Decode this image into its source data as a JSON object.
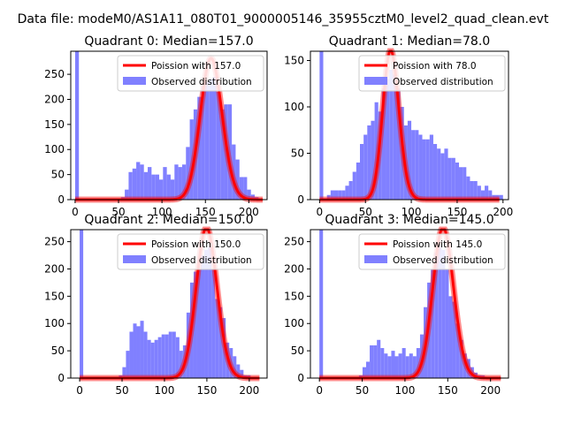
{
  "suptitle": "Data file: modeM0/AS1A11_080T01_9000005146_35955cztM0_level2_quad_clean.evt",
  "colors": {
    "bar": "#8080ff",
    "line": "#ff0000",
    "axis": "#000000"
  },
  "chart_data": [
    {
      "type": "bar",
      "title": "Quadrant 0: Median=157.0",
      "xlabel": "",
      "ylabel": "",
      "xlim": [
        -5,
        221
      ],
      "ylim": [
        0,
        296
      ],
      "xticks": [
        0,
        50,
        100,
        150,
        200
      ],
      "yticks": [
        0,
        50,
        100,
        150,
        200,
        250
      ],
      "bin_edges_start": 0,
      "bin_width": 4.4,
      "counts": [
        296,
        0,
        0,
        0,
        0,
        0,
        0,
        0,
        0,
        0,
        0,
        0,
        5,
        20,
        55,
        62,
        75,
        70,
        55,
        65,
        50,
        50,
        40,
        65,
        50,
        40,
        70,
        65,
        70,
        105,
        160,
        180,
        205,
        225,
        235,
        240,
        245,
        215,
        180,
        190,
        190,
        110,
        80,
        45,
        45,
        20,
        10,
        5,
        0
      ],
      "series": [
        {
          "name": "Poission with 157.0",
          "type": "poisson",
          "mu": 157.0,
          "x_max": 216
        },
        {
          "name": "Observed distribution",
          "type": "hist"
        }
      ],
      "legend": "upper-right"
    },
    {
      "type": "bar",
      "title": "Quadrant 1: Median=78.0",
      "xlabel": "",
      "ylabel": "",
      "xlim": [
        -10,
        206
      ],
      "ylim": [
        0,
        160
      ],
      "xticks": [
        0,
        50,
        100,
        150,
        200
      ],
      "yticks": [
        0,
        50,
        100,
        150
      ],
      "bin_edges_start": 0,
      "bin_width": 4.0,
      "counts": [
        160,
        0,
        5,
        10,
        10,
        10,
        10,
        15,
        20,
        30,
        40,
        60,
        70,
        80,
        85,
        105,
        95,
        120,
        130,
        140,
        135,
        120,
        100,
        80,
        85,
        75,
        75,
        70,
        65,
        65,
        70,
        60,
        55,
        50,
        55,
        45,
        45,
        40,
        35,
        35,
        25,
        20,
        20,
        15,
        10,
        15,
        10,
        5,
        5,
        5
      ],
      "series": [
        {
          "name": "Poission with 78.0",
          "type": "poisson",
          "mu": 78.0,
          "x_max": 196
        },
        {
          "name": "Observed distribution",
          "type": "hist"
        }
      ],
      "legend": "upper-right"
    },
    {
      "type": "bar",
      "title": "Quadrant 2: Median=150.0",
      "xlabel": "",
      "ylabel": "",
      "xlim": [
        -10.5,
        221
      ],
      "ylim": [
        0,
        272
      ],
      "xticks": [
        0,
        50,
        100,
        150,
        200
      ],
      "yticks": [
        0,
        50,
        100,
        150,
        200,
        250
      ],
      "bin_edges_start": 0,
      "bin_width": 4.2,
      "counts": [
        272,
        0,
        0,
        0,
        0,
        0,
        0,
        0,
        0,
        0,
        0,
        5,
        20,
        50,
        85,
        100,
        95,
        105,
        85,
        70,
        65,
        70,
        75,
        80,
        80,
        85,
        85,
        75,
        50,
        60,
        120,
        175,
        195,
        200,
        225,
        235,
        240,
        200,
        145,
        130,
        110,
        65,
        55,
        40,
        25,
        15,
        5,
        5,
        0
      ],
      "series": [
        {
          "name": "Poission with 150.0",
          "type": "poisson",
          "mu": 150.0,
          "x_max": 212
        },
        {
          "name": "Observed distribution",
          "type": "hist"
        }
      ],
      "legend": "upper-right"
    },
    {
      "type": "bar",
      "title": "Quadrant 3: Median=145.0",
      "xlabel": "",
      "ylabel": "",
      "xlim": [
        -10.5,
        221
      ],
      "ylim": [
        0,
        272
      ],
      "xticks": [
        0,
        50,
        100,
        150,
        200
      ],
      "yticks": [
        0,
        50,
        100,
        150,
        200,
        250
      ],
      "bin_edges_start": 0,
      "bin_width": 4.2,
      "counts": [
        272,
        0,
        0,
        0,
        0,
        0,
        0,
        0,
        0,
        0,
        0,
        5,
        20,
        30,
        60,
        60,
        70,
        55,
        45,
        40,
        50,
        40,
        45,
        55,
        40,
        45,
        40,
        55,
        80,
        130,
        175,
        200,
        230,
        240,
        235,
        200,
        150,
        140,
        100,
        70,
        45,
        35,
        20,
        10,
        5,
        5,
        0
      ],
      "series": [
        {
          "name": "Poission with 145.0",
          "type": "poisson",
          "mu": 145.0,
          "x_max": 212
        },
        {
          "name": "Observed distribution",
          "type": "hist"
        }
      ],
      "legend": "upper-right"
    }
  ]
}
